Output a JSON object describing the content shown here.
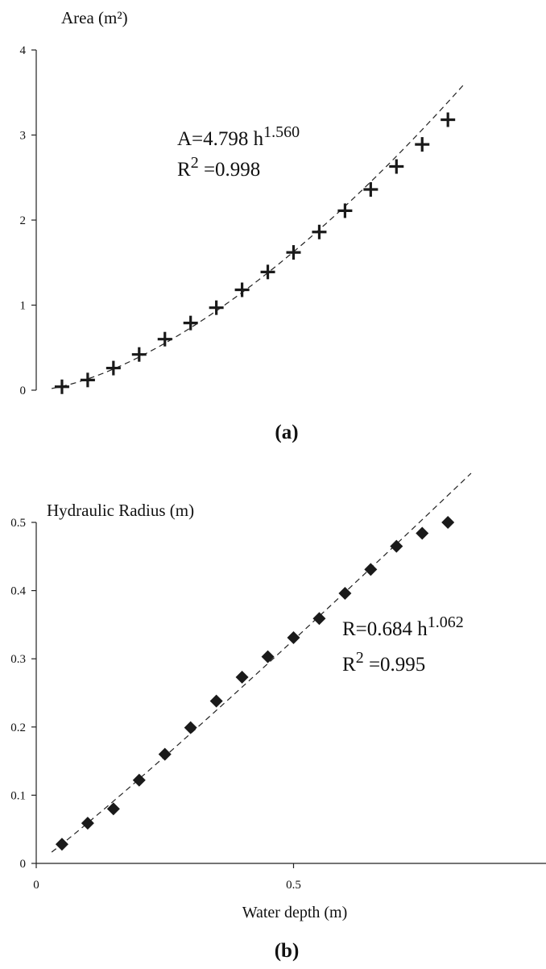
{
  "chart_data": [
    {
      "type": "scatter",
      "ylabel": "Area (m²)",
      "ylim": [
        0,
        4
      ],
      "xlim": [
        0,
        1
      ],
      "yticks": [
        "0",
        "1",
        "2",
        "3",
        "4"
      ],
      "x": [
        0.05,
        0.1,
        0.15,
        0.2,
        0.25,
        0.3,
        0.35,
        0.4,
        0.45,
        0.5,
        0.55,
        0.6,
        0.65,
        0.7,
        0.75,
        0.8
      ],
      "y": [
        0.04,
        0.12,
        0.26,
        0.42,
        0.6,
        0.79,
        0.97,
        1.18,
        1.39,
        1.62,
        1.86,
        2.11,
        2.36,
        2.63,
        2.89,
        3.18
      ],
      "fit": {
        "coef": 4.798,
        "exp": 1.56,
        "line": "dashed"
      },
      "equation": {
        "line1_main": "A=4.798 h",
        "line1_sup": "1.560",
        "line2_main": "R",
        "line2_sup": "2",
        "line2_rest": " =0.998"
      },
      "marker": "plus",
      "marker_color": "#1a1a1a",
      "panel_label": "(a)"
    },
    {
      "type": "scatter",
      "ylabel": "Hydraulic Radius (m)",
      "xlabel": "Water depth (m)",
      "ylim": [
        0,
        0.5
      ],
      "xlim": [
        0,
        1
      ],
      "yticks": [
        "0",
        "0.1",
        "0.2",
        "0.3",
        "0.4",
        "0.5"
      ],
      "xticks": [
        "0",
        "0.5"
      ],
      "x": [
        0.05,
        0.1,
        0.15,
        0.2,
        0.25,
        0.3,
        0.35,
        0.4,
        0.45,
        0.5,
        0.55,
        0.6,
        0.65,
        0.7,
        0.75,
        0.8
      ],
      "y": [
        0.028,
        0.059,
        0.08,
        0.122,
        0.16,
        0.199,
        0.238,
        0.273,
        0.303,
        0.331,
        0.359,
        0.396,
        0.431,
        0.465,
        0.484,
        0.5
      ],
      "fit": {
        "coef": 0.684,
        "exp": 1.062,
        "line": "dashed"
      },
      "equation": {
        "line1_main": "R=0.684 h",
        "line1_sup": "1.062",
        "line2_main": "R",
        "line2_sup": "2",
        "line2_rest": " =0.995"
      },
      "marker": "diamond",
      "marker_color": "#1a1a1a",
      "panel_label": "(b)"
    }
  ]
}
